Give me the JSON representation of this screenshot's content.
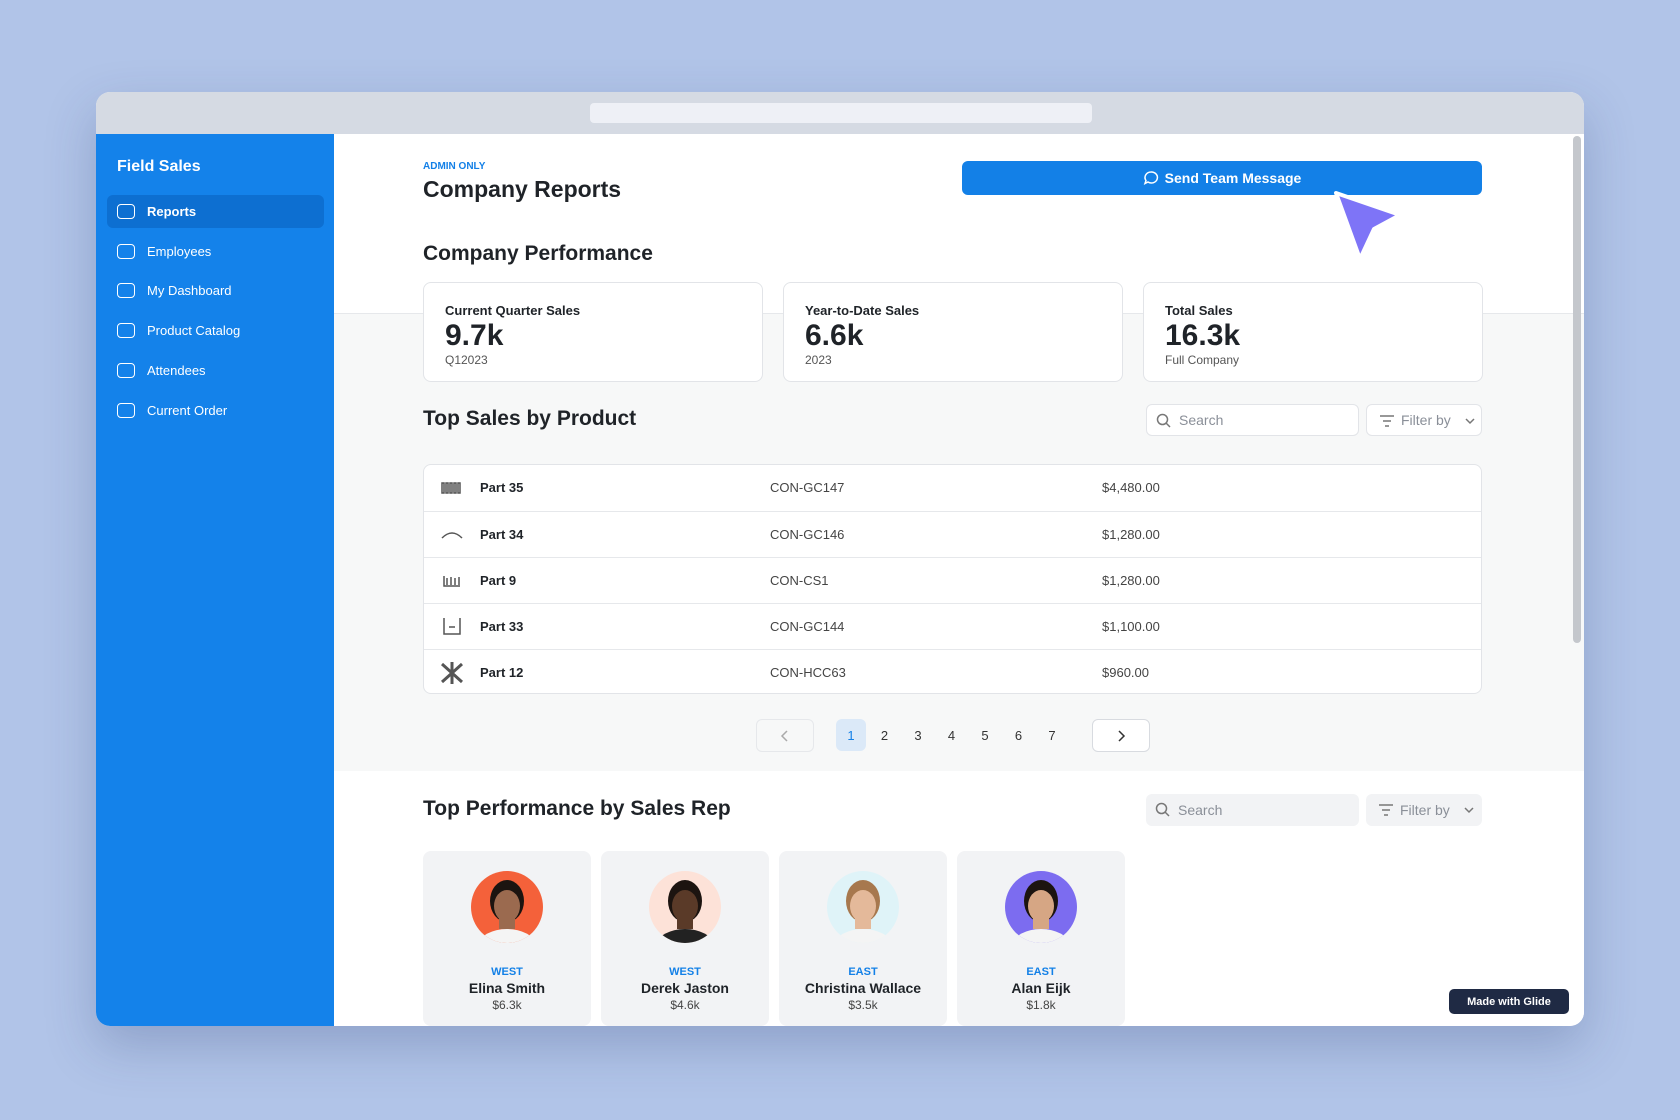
{
  "sidebar": {
    "title": "Field Sales",
    "items": [
      "Reports",
      "Employees",
      "My Dashboard",
      "Product Catalog",
      "Attendees",
      "Current Order"
    ]
  },
  "header": {
    "eyebrow": "ADMIN ONLY",
    "title": "Company Reports",
    "button": "Send Team Message"
  },
  "performance": {
    "title": "Company Performance",
    "cards": [
      {
        "label": "Current Quarter Sales",
        "value": "9.7k",
        "sub": "Q12023"
      },
      {
        "label": "Year-to-Date Sales",
        "value": "6.6k",
        "sub": "2023"
      },
      {
        "label": "Total Sales",
        "value": "16.3k",
        "sub": "Full Company"
      }
    ]
  },
  "products": {
    "title": "Top Sales by Product",
    "search": "Search",
    "filter": "Filter by",
    "rows": [
      [
        "Part 35",
        "CON-GC147",
        "$4,480.00"
      ],
      [
        "Part 34",
        "CON-GC146",
        "$1,280.00"
      ],
      [
        "Part 9",
        "CON-CS1",
        "$1,280.00"
      ],
      [
        "Part 33",
        "CON-GC144",
        "$1,100.00"
      ],
      [
        "Part 12",
        "CON-HCC63",
        "$960.00"
      ]
    ],
    "pages": [
      1,
      2,
      3,
      4,
      5,
      6,
      7
    ]
  },
  "reps": {
    "title": "Top Performance by Sales Rep",
    "search": "Search",
    "filter": "Filter by",
    "cards": [
      {
        "region": "WEST",
        "name": "Elina Smith",
        "sales": "$6.3k"
      },
      {
        "region": "WEST",
        "name": "Derek Jaston",
        "sales": "$4.6k"
      },
      {
        "region": "EAST",
        "name": "Christina Wallace",
        "sales": "$3.5k"
      },
      {
        "region": "EAST",
        "name": "Alan Eijk",
        "sales": "$1.8k"
      }
    ]
  },
  "badge": "Made with Glide"
}
